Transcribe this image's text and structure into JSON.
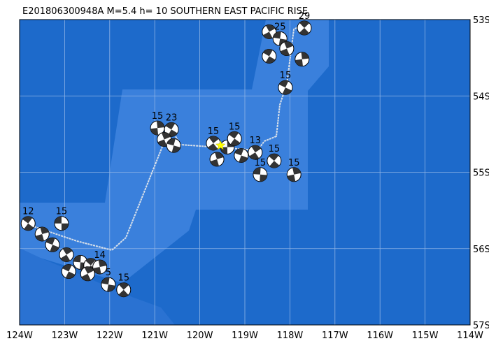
{
  "map": {
    "title": "E201806300948A  M=5.4  h= 10  SOUTHERN EAST PACIFIC RISE",
    "lonlim": [
      -124,
      -114
    ],
    "latlim": [
      -57,
      -53
    ],
    "lonticks": [
      {
        "value": -124,
        "label": "124W"
      },
      {
        "value": -123,
        "label": "123W"
      },
      {
        "value": -122,
        "label": "122W"
      },
      {
        "value": -121,
        "label": "121W"
      },
      {
        "value": -120,
        "label": "120W"
      },
      {
        "value": -119,
        "label": "119W"
      },
      {
        "value": -118,
        "label": "118W"
      },
      {
        "value": -117,
        "label": "117W"
      },
      {
        "value": -116,
        "label": "116W"
      },
      {
        "value": -115,
        "label": "115W"
      },
      {
        "value": -114,
        "label": "114W"
      }
    ],
    "latticks": [
      {
        "value": -53,
        "label": "53S"
      },
      {
        "value": -54,
        "label": "54S"
      },
      {
        "value": -55,
        "label": "55S"
      },
      {
        "value": -56,
        "label": "56S"
      },
      {
        "value": -57,
        "label": "57S"
      }
    ],
    "epicenter": {
      "lon": -119.54,
      "lat": -54.65
    },
    "events": [
      {
        "lon": -123.07,
        "lat": -55.67,
        "depth": "15"
      },
      {
        "lon": -123.81,
        "lat": -55.67,
        "depth": "12"
      },
      {
        "lon": -123.5,
        "lat": -55.81
      },
      {
        "lon": -123.27,
        "lat": -55.95
      },
      {
        "lon": -122.96,
        "lat": -56.08
      },
      {
        "lon": -122.65,
        "lat": -56.18
      },
      {
        "lon": -122.42,
        "lat": -56.22
      },
      {
        "lon": -122.22,
        "lat": -56.24,
        "depth": "14"
      },
      {
        "lon": -122.91,
        "lat": -56.3
      },
      {
        "lon": -122.49,
        "lat": -56.33
      },
      {
        "lon": -122.03,
        "lat": -56.47,
        "depth": "5"
      },
      {
        "lon": -121.69,
        "lat": -56.54,
        "depth": "15"
      },
      {
        "lon": -120.94,
        "lat": -54.42,
        "depth": "15"
      },
      {
        "lon": -120.63,
        "lat": -54.44,
        "depth": "23"
      },
      {
        "lon": -120.79,
        "lat": -54.57
      },
      {
        "lon": -120.58,
        "lat": -54.65
      },
      {
        "lon": -119.7,
        "lat": -54.62,
        "depth": "15"
      },
      {
        "lon": -119.39,
        "lat": -54.67
      },
      {
        "lon": -119.23,
        "lat": -54.56,
        "depth": "15"
      },
      {
        "lon": -119.62,
        "lat": -54.83
      },
      {
        "lon": -119.08,
        "lat": -54.78
      },
      {
        "lon": -118.77,
        "lat": -54.74,
        "depth": "13"
      },
      {
        "lon": -118.66,
        "lat": -55.03,
        "depth": "15"
      },
      {
        "lon": -118.35,
        "lat": -54.85,
        "depth": "15"
      },
      {
        "lon": -117.91,
        "lat": -55.03,
        "depth": "15"
      },
      {
        "lon": -118.1,
        "lat": -53.89,
        "depth": "15"
      },
      {
        "lon": -118.46,
        "lat": -53.16
      },
      {
        "lon": -118.22,
        "lat": -53.25,
        "depth": "25"
      },
      {
        "lon": -117.68,
        "lat": -53.11,
        "depth": "29"
      },
      {
        "lon": -117.73,
        "lat": -53.52
      },
      {
        "lon": -118.46,
        "lat": -53.48
      },
      {
        "lon": -118.07,
        "lat": -53.38
      }
    ]
  }
}
